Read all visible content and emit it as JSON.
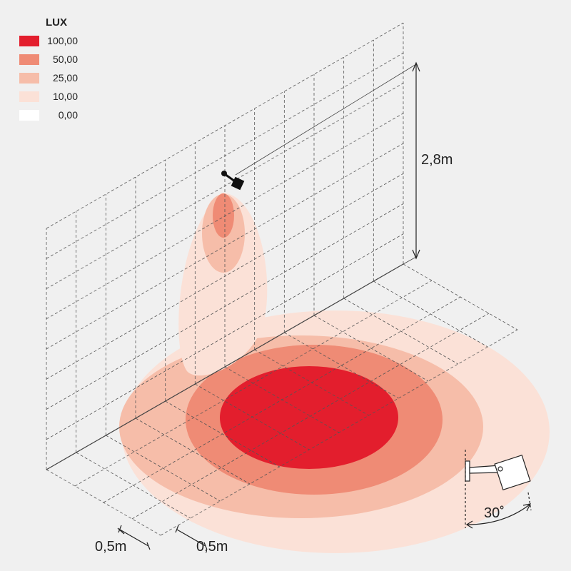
{
  "legend": {
    "title": "LUX",
    "items": [
      {
        "label": "100,00",
        "color": "#e31e2d"
      },
      {
        "label": "50,00",
        "color": "#ef8b75"
      },
      {
        "label": "25,00",
        "color": "#f6bda9"
      },
      {
        "label": "10,00",
        "color": "#fbe1d7"
      },
      {
        "label": "0,00",
        "color": "#ffffff"
      }
    ]
  },
  "dimensions": {
    "height": "2,8m",
    "grid_depth": "0,5m",
    "grid_width": "0,5m",
    "angle": "30˚"
  }
}
